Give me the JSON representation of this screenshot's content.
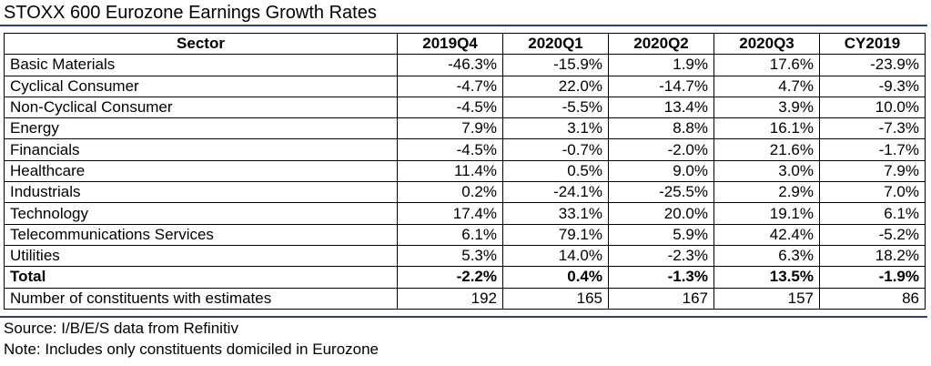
{
  "title": "STOXX 600 Eurozone Earnings Growth Rates",
  "chart_data": {
    "type": "table",
    "columns": [
      "Sector",
      "2019Q4",
      "2020Q1",
      "2020Q2",
      "2020Q3",
      "CY2019"
    ],
    "rows": [
      {
        "label": "Basic Materials",
        "values": [
          "-46.3%",
          "-15.9%",
          "1.9%",
          "17.6%",
          "-23.9%"
        ],
        "bold": false
      },
      {
        "label": "Cyclical Consumer",
        "values": [
          "-4.7%",
          "22.0%",
          "-14.7%",
          "4.7%",
          "-9.3%"
        ],
        "bold": false
      },
      {
        "label": "Non-Cyclical Consumer",
        "values": [
          "-4.5%",
          "-5.5%",
          "13.4%",
          "3.9%",
          "10.0%"
        ],
        "bold": false
      },
      {
        "label": "Energy",
        "values": [
          "7.9%",
          "3.1%",
          "8.8%",
          "16.1%",
          "-7.3%"
        ],
        "bold": false
      },
      {
        "label": "Financials",
        "values": [
          "-4.5%",
          "-0.7%",
          "-2.0%",
          "21.6%",
          "-1.7%"
        ],
        "bold": false
      },
      {
        "label": "Healthcare",
        "values": [
          "11.4%",
          "0.5%",
          "9.0%",
          "3.0%",
          "7.9%"
        ],
        "bold": false
      },
      {
        "label": "Industrials",
        "values": [
          "0.2%",
          "-24.1%",
          "-25.5%",
          "2.9%",
          "7.0%"
        ],
        "bold": false
      },
      {
        "label": "Technology",
        "values": [
          "17.4%",
          "33.1%",
          "20.0%",
          "19.1%",
          "6.1%"
        ],
        "bold": false
      },
      {
        "label": "Telecommunications Services",
        "values": [
          "6.1%",
          "79.1%",
          "5.9%",
          "42.4%",
          "-5.2%"
        ],
        "bold": false
      },
      {
        "label": "Utilities",
        "values": [
          "5.3%",
          "14.0%",
          "-2.3%",
          "6.3%",
          "18.2%"
        ],
        "bold": false
      },
      {
        "label": "Total",
        "values": [
          "-2.2%",
          "0.4%",
          "-1.3%",
          "13.5%",
          "-1.9%"
        ],
        "bold": true
      },
      {
        "label": "Number of constituents with estimates",
        "values": [
          "192",
          "165",
          "167",
          "157",
          "86"
        ],
        "bold": false
      }
    ]
  },
  "footnotes": {
    "source": "Source: I/B/E/S data from Refinitiv",
    "note": "Note: Includes only constituents domiciled in Eurozone"
  },
  "colors": {
    "rule": "#2a3a8c"
  }
}
